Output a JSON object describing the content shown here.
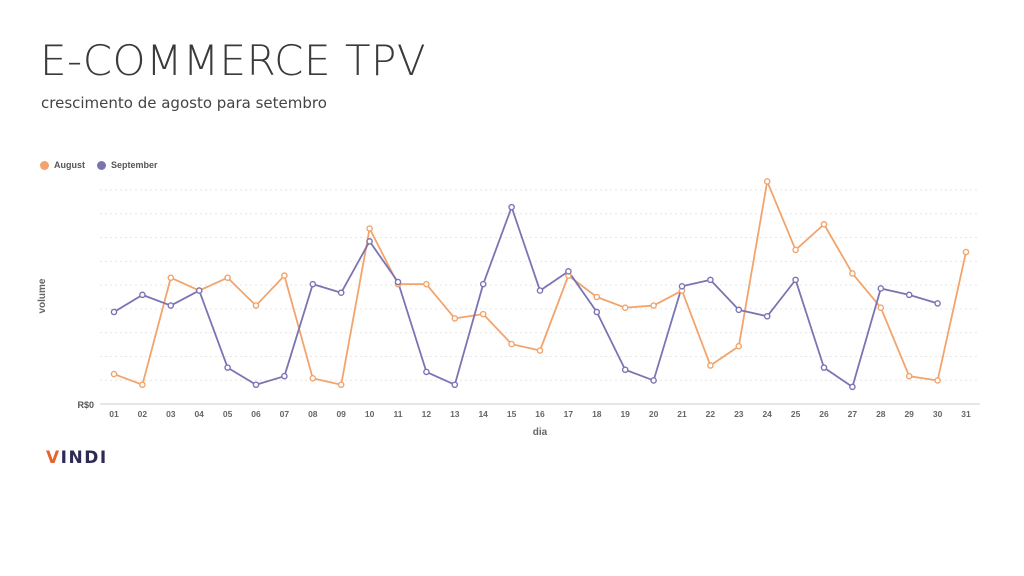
{
  "header": {
    "title": "E-COMMERCE TPV",
    "subtitle": "crescimento de agosto para setembro"
  },
  "logo": {
    "text": "VINDI"
  },
  "colors": {
    "august": "#f2a46c",
    "september": "#7b74b3",
    "grid": "#e6e6e6",
    "axis": "#cccccc"
  },
  "chart_data": {
    "type": "line",
    "title": "",
    "xlabel": "dia",
    "ylabel": "volume",
    "y_tick_label": "R$0",
    "ylim": [
      0,
      100
    ],
    "grid": true,
    "legend": "top-left",
    "categories": [
      "01",
      "02",
      "03",
      "04",
      "05",
      "06",
      "07",
      "08",
      "09",
      "10",
      "11",
      "12",
      "13",
      "14",
      "15",
      "16",
      "17",
      "18",
      "19",
      "20",
      "21",
      "22",
      "23",
      "24",
      "25",
      "26",
      "27",
      "28",
      "29",
      "30",
      "31"
    ],
    "series": [
      {
        "name": "August",
        "color": "#f2a46c",
        "values": [
          14,
          9,
          59,
          53,
          59,
          46,
          60,
          12,
          9,
          82,
          56,
          56,
          40,
          42,
          28,
          25,
          60,
          50,
          45,
          46,
          53,
          18,
          27,
          104,
          72,
          84,
          61,
          45,
          13,
          11,
          71
        ]
      },
      {
        "name": "September",
        "color": "#7b74b3",
        "values": [
          43,
          51,
          46,
          53,
          17,
          9,
          13,
          56,
          52,
          76,
          57,
          15,
          9,
          56,
          92,
          53,
          62,
          43,
          16,
          11,
          55,
          58,
          44,
          41,
          58,
          17,
          8,
          54,
          51,
          47,
          null
        ]
      }
    ]
  }
}
